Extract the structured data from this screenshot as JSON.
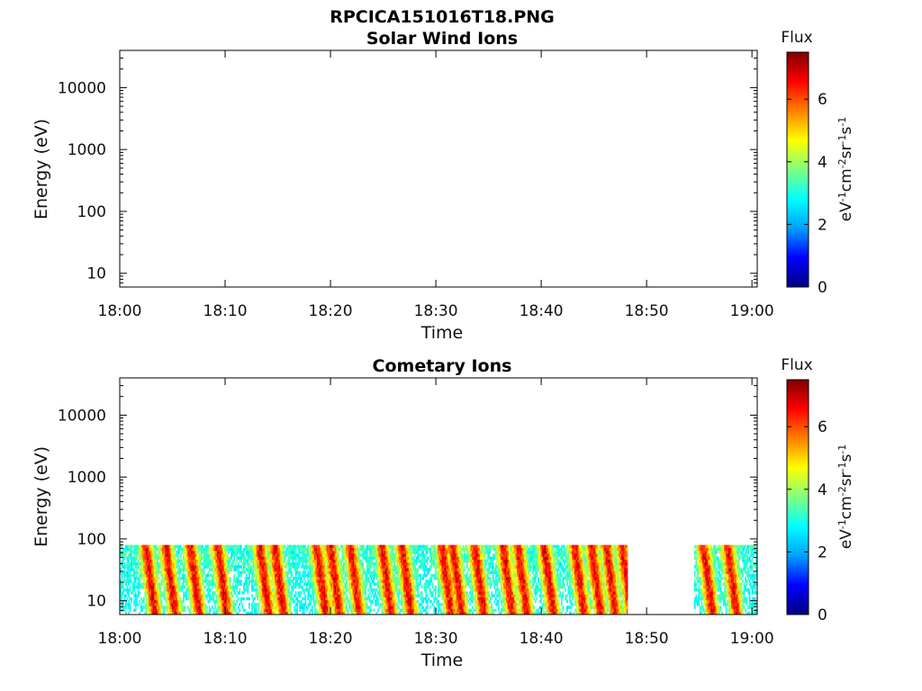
{
  "figure_title": "RPCICA151016T18.PNG",
  "colormap": {
    "name": "jet",
    "stops": [
      "#00007f",
      "#0000ff",
      "#00a0ff",
      "#00ffff",
      "#80ff80",
      "#ffff00",
      "#ff8000",
      "#ff0000",
      "#7f0000"
    ]
  },
  "chart_data": [
    {
      "type": "heatmap",
      "title": "Solar Wind Ions",
      "xlabel": "Time",
      "ylabel": "Energy (eV)",
      "x_ticks": [
        "18:00",
        "18:10",
        "18:20",
        "18:30",
        "18:40",
        "18:50",
        "19:00"
      ],
      "xlim_minutes": [
        0,
        60.5
      ],
      "y_scale": "log",
      "ylim": [
        6,
        40000
      ],
      "y_ticks": [
        10,
        100,
        1000,
        10000
      ],
      "y_tick_labels": [
        "10",
        "100",
        "1000",
        "10000"
      ],
      "colorbar": {
        "title": "Flux",
        "unit_label": "eV-1 cm-2 sr-1 s-1",
        "ticks": [
          "0",
          "2",
          "4",
          "6"
        ],
        "range": [
          0,
          7.5
        ]
      },
      "segments": []
    },
    {
      "type": "heatmap",
      "title": "Cometary Ions",
      "xlabel": "Time",
      "ylabel": "Energy (eV)",
      "x_ticks": [
        "18:00",
        "18:10",
        "18:20",
        "18:30",
        "18:40",
        "18:50",
        "19:00"
      ],
      "xlim_minutes": [
        0,
        60.5
      ],
      "y_scale": "log",
      "ylim": [
        6,
        40000
      ],
      "y_ticks": [
        10,
        100,
        1000,
        10000
      ],
      "y_tick_labels": [
        "10",
        "100",
        "1000",
        "10000"
      ],
      "colorbar": {
        "title": "Flux",
        "unit_label": "eV-1 cm-2 sr-1 s-1",
        "ticks": [
          "0",
          "2",
          "4",
          "6"
        ],
        "range": [
          0,
          7.5
        ]
      },
      "energy_range_eV": [
        6,
        80
      ],
      "segments": [
        {
          "start_min": 0,
          "end_min": 48.2
        },
        {
          "start_min": 54.5,
          "end_min": 60.5
        }
      ],
      "flux_range_observed": [
        2.5,
        7.2
      ],
      "peak_times_min": [
        2.4,
        4.3,
        6.6,
        9.2,
        13.2,
        14.6,
        18.6,
        19.9,
        21.8,
        24.8,
        26.7,
        30.5,
        31.5,
        33.6,
        36.3,
        37.7,
        40.2,
        43.1,
        44.7,
        46.1,
        47.6,
        55.3,
        57.6
      ]
    }
  ]
}
